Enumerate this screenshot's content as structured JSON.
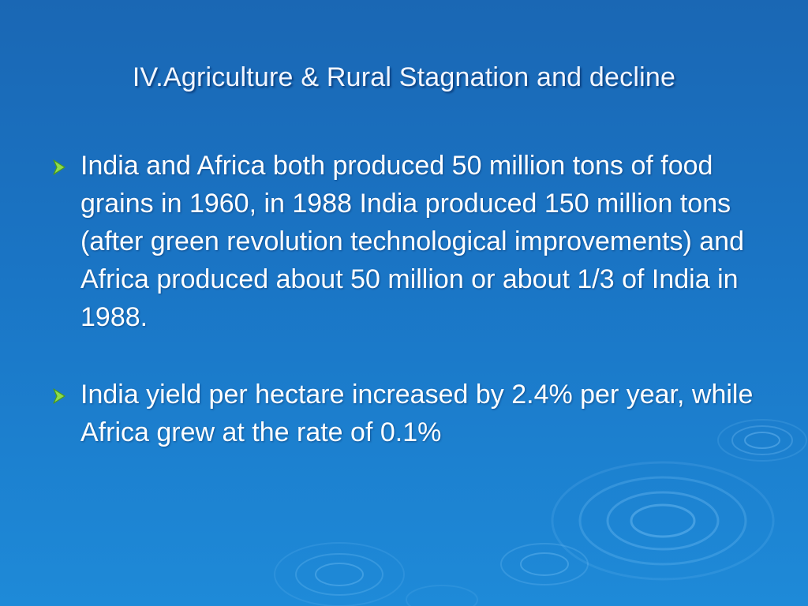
{
  "slide": {
    "title": "IV.Agriculture & Rural Stagnation and decline",
    "bullets": [
      {
        "text": "India and Africa both produced 50 million tons of food grains in 1960, in 1988 India produced 150 million tons (after green revolution technological improvements) and Africa produced about 50 million or about 1/3 of India in 1988."
      },
      {
        "text": "India yield per hectare increased by 2.4% per year, while Africa grew at the rate of 0.1%"
      }
    ],
    "bullet_icon": "arrowhead-bullet-icon",
    "colors": {
      "background_top": "#1a67b4",
      "background_bottom": "#1e8ad8",
      "text": "#ffffff",
      "bullet_marker": "#8fdc4a"
    }
  }
}
